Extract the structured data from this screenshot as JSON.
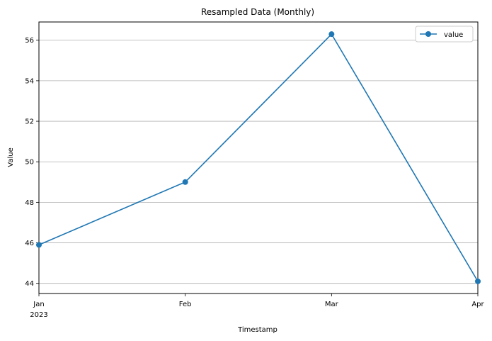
{
  "chart_data": {
    "type": "line",
    "title": "Resampled Data (Monthly)",
    "xlabel": "Timestamp",
    "ylabel": "Value",
    "x": [
      "2023-01",
      "2023-02",
      "2023-03",
      "2023-04"
    ],
    "x_tick_labels": [
      "Jan",
      "Feb",
      "Mar",
      "Apr"
    ],
    "x_tick_year": "2023",
    "series": [
      {
        "name": "value",
        "values": [
          45.9,
          49.0,
          56.3,
          44.1
        ],
        "color": "#1f77b4",
        "marker": "circle"
      }
    ],
    "ylim": [
      43.5,
      56.9
    ],
    "yticks": [
      44,
      46,
      48,
      50,
      52,
      54,
      56
    ],
    "y_tick_labels": [
      "44",
      "46",
      "48",
      "50",
      "52",
      "54",
      "56"
    ],
    "grid": "horizontal",
    "legend_position": "top-right"
  }
}
